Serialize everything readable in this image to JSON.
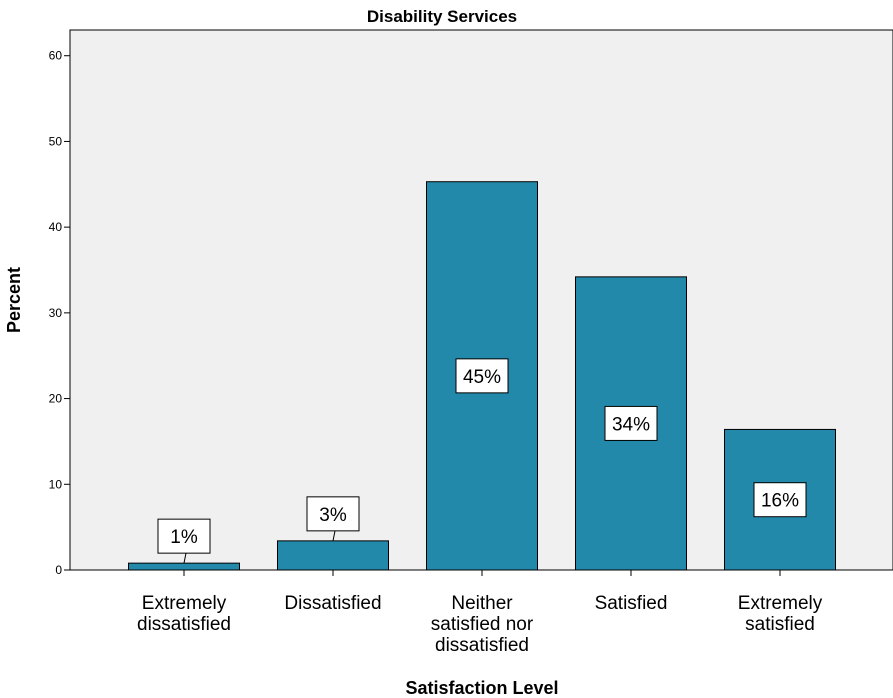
{
  "chart_data": {
    "type": "bar",
    "title": "Disability Services",
    "xlabel": "Satisfaction Level",
    "ylabel": "Percent",
    "ylim": [
      0,
      63
    ],
    "yticks": [
      0,
      10,
      20,
      30,
      40,
      50,
      60
    ],
    "grid": false,
    "categories": [
      [
        "Extremely",
        "dissatisfied"
      ],
      [
        "Dissatisfied"
      ],
      [
        "Neither",
        "satisfied nor",
        "dissatisfied"
      ],
      [
        "Satisfied"
      ],
      [
        "Extremely",
        "satisfied"
      ]
    ],
    "values": [
      0.8,
      3.4,
      45.3,
      34.2,
      16.4
    ],
    "data_labels": [
      "1%",
      "3%",
      "45%",
      "34%",
      "16%"
    ],
    "bar_color": "#2389aa",
    "plot_background": "#f0f0f0"
  }
}
